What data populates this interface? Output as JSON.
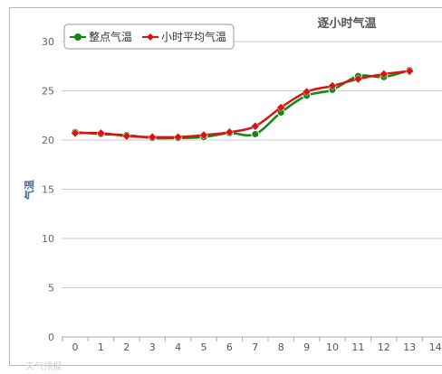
{
  "chart_data": {
    "type": "line",
    "title": "逐小时气温",
    "xlabel": "",
    "ylabel": "气温",
    "x": [
      0,
      1,
      2,
      3,
      4,
      5,
      6,
      7,
      8,
      9,
      10,
      11,
      12,
      13
    ],
    "x_ticks": [
      "0",
      "1",
      "2",
      "3",
      "4",
      "5",
      "6",
      "7",
      "8",
      "9",
      "10",
      "11",
      "12",
      "13",
      "14"
    ],
    "y_ticks": [
      "0",
      "5",
      "10",
      "15",
      "20",
      "25",
      "30"
    ],
    "ylim": [
      0,
      30
    ],
    "grid": true,
    "legend_position": "top-left",
    "series": [
      {
        "name": "整点气温",
        "color": "#118811",
        "marker": "circle",
        "values": [
          20.8,
          20.6,
          20.5,
          20.2,
          20.2,
          20.3,
          20.7,
          20.6,
          22.8,
          24.5,
          25.1,
          26.5,
          26.4,
          27.1
        ]
      },
      {
        "name": "小时平均气温",
        "color": "#dd1111",
        "marker": "diamond",
        "values": [
          20.7,
          20.7,
          20.4,
          20.3,
          20.3,
          20.5,
          20.8,
          21.4,
          23.3,
          24.9,
          25.5,
          26.2,
          26.7,
          27.0
        ]
      }
    ]
  },
  "watermark": "天气预报"
}
